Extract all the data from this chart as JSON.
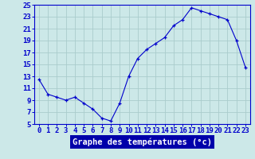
{
  "hours": [
    0,
    1,
    2,
    3,
    4,
    5,
    6,
    7,
    8,
    9,
    10,
    11,
    12,
    13,
    14,
    15,
    16,
    17,
    18,
    19,
    20,
    21,
    22,
    23
  ],
  "temps": [
    12.5,
    10.0,
    9.5,
    9.0,
    9.5,
    8.5,
    7.5,
    6.0,
    5.5,
    8.5,
    13.0,
    16.0,
    17.5,
    18.5,
    19.5,
    21.5,
    22.5,
    24.5,
    24.0,
    23.5,
    23.0,
    22.5,
    19.0,
    14.5
  ],
  "line_color": "#0000cc",
  "marker": "+",
  "bg_color": "#cce8e8",
  "grid_color": "#aacccc",
  "tick_color": "#0000cc",
  "xlabel": "Graphe des températures (°c)",
  "xlabel_bg": "#0000aa",
  "xlabel_fg": "#ffffff",
  "ylim": [
    5,
    25
  ],
  "yticks": [
    5,
    7,
    9,
    11,
    13,
    15,
    17,
    19,
    21,
    23,
    25
  ],
  "tick_fontsize": 6.5,
  "label_fontsize": 7.5
}
